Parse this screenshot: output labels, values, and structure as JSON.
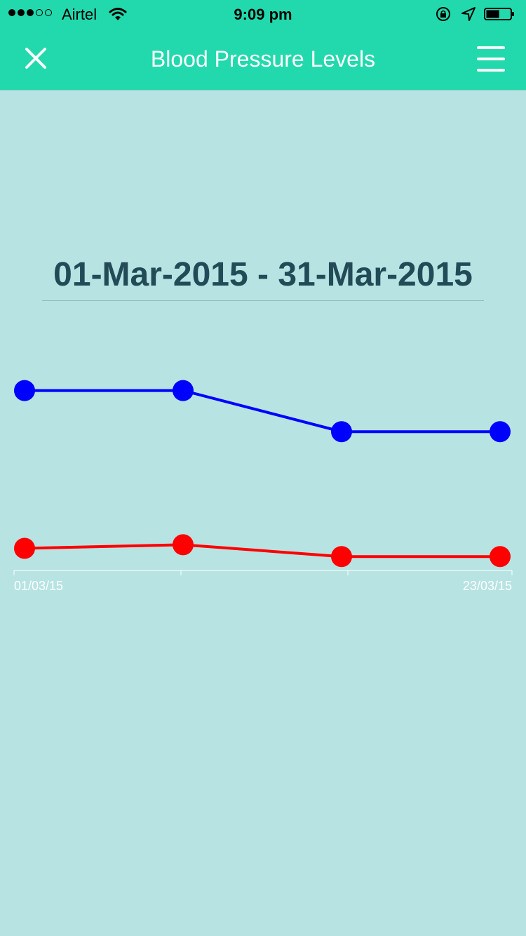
{
  "status_bar": {
    "signal_filled": 3,
    "signal_total": 5,
    "carrier": "Airtel",
    "time": "9:09 pm",
    "battery_level": 0.55,
    "icons": [
      "wifi-icon",
      "rotation-lock-icon",
      "location-arrow-icon",
      "battery-icon"
    ]
  },
  "nav": {
    "title": "Blood Pressure Levels",
    "close_icon": "close-icon",
    "menu_icon": "hamburger-menu-icon"
  },
  "date_range": "01-Mar-2015 - 31-Mar-2015",
  "colors": {
    "header": "#22d9ad",
    "background": "#b7e3e3",
    "systolic_series": "#0000ff",
    "diastolic_series": "#ff0000",
    "axis": "#ffffff",
    "date_text": "#234b57"
  },
  "chart_data": {
    "type": "line",
    "x": [
      "01/03/15",
      "",
      "",
      "23/03/15"
    ],
    "series": [
      {
        "values": [
          125,
          125,
          117,
          117
        ]
      },
      {
        "values": [
          94.3,
          95,
          92.7,
          92.7
        ]
      }
    ],
    "ylim": [
      90,
      130
    ],
    "grid": false,
    "legend": "none",
    "xlabel": "",
    "ylabel": ""
  }
}
